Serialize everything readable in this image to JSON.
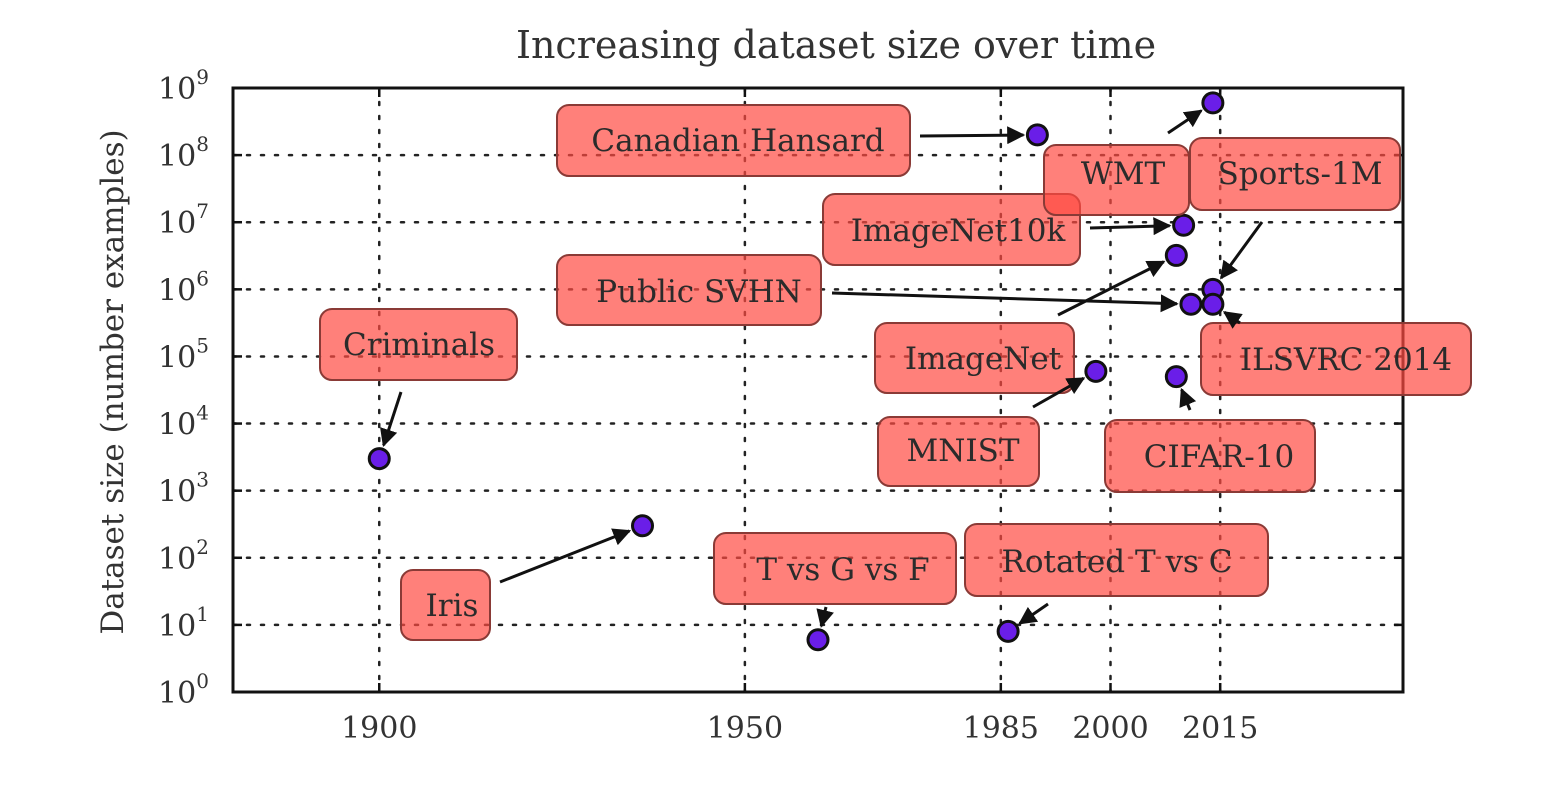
{
  "chart_data": {
    "type": "scatter",
    "title": "Increasing dataset size over time",
    "ylabel": "Dataset size (number examples)",
    "xlabel": "",
    "y_scale": "log",
    "xlim": [
      1880,
      2040
    ],
    "ylim_exponents": [
      0,
      9
    ],
    "x_ticks": [
      1900,
      1950,
      1985,
      2000,
      2015
    ],
    "y_ticks": [
      {
        "base": "10",
        "exp": "0"
      },
      {
        "base": "10",
        "exp": "1"
      },
      {
        "base": "10",
        "exp": "2"
      },
      {
        "base": "10",
        "exp": "3"
      },
      {
        "base": "10",
        "exp": "4"
      },
      {
        "base": "10",
        "exp": "5"
      },
      {
        "base": "10",
        "exp": "6"
      },
      {
        "base": "10",
        "exp": "7"
      },
      {
        "base": "10",
        "exp": "8"
      },
      {
        "base": "10",
        "exp": "9"
      }
    ],
    "grid": true,
    "marker_color": "#6a1ee8",
    "annotation_color": "#ff4a42",
    "points": [
      {
        "name": "Criminals",
        "x": 1900,
        "y": 3000
      },
      {
        "name": "Iris",
        "x": 1936,
        "y": 300
      },
      {
        "name": "T vs G vs F",
        "x": 1960,
        "y": 6
      },
      {
        "name": "Rotated T vs C",
        "x": 1986,
        "y": 8
      },
      {
        "name": "Canadian Hansard",
        "x": 1990,
        "y": 200000000
      },
      {
        "name": "MNIST",
        "x": 1998,
        "y": 60000
      },
      {
        "name": "ImageNet",
        "x": 2009,
        "y": 3200000
      },
      {
        "name": "CIFAR-10",
        "x": 2009,
        "y": 50000
      },
      {
        "name": "ImageNet10k",
        "x": 2010,
        "y": 9000000
      },
      {
        "name": "Public SVHN",
        "x": 2011,
        "y": 600000
      },
      {
        "name": "Sports-1M",
        "x": 2014,
        "y": 1000000
      },
      {
        "name": "ILSVRC 2014",
        "x": 2014,
        "y": 600000
      },
      {
        "name": "WMT",
        "x": 2014,
        "y": 600000000
      }
    ]
  }
}
